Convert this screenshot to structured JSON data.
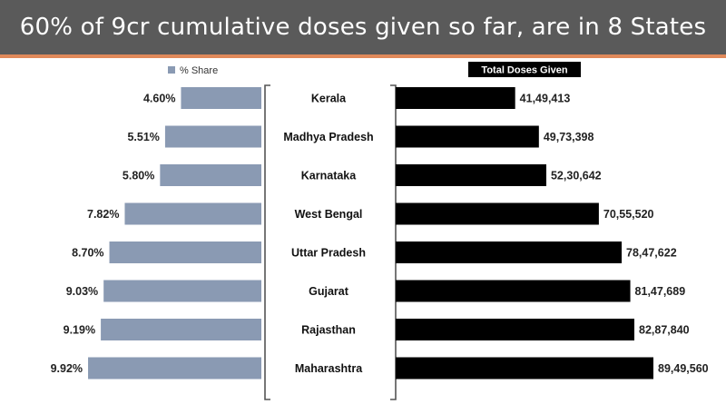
{
  "slide": {
    "title": "60% of 9cr cumulative doses given so far, are in 8 States"
  },
  "colors": {
    "share_bar": "#8a9ab3",
    "doses_bar": "#000000",
    "header_bg": "#5a5a5a",
    "header_accent": "#e0895a"
  },
  "chart_data": [
    {
      "type": "bar",
      "orientation": "horizontal",
      "legend": "% Share",
      "legend_position": "top",
      "categories": [
        "Kerala",
        "Madhya Pradesh",
        "Karnataka",
        "West Bengal",
        "Uttar Pradesh",
        "Gujarat",
        "Rajasthan",
        "Maharashtra"
      ],
      "values": [
        4.6,
        5.51,
        5.8,
        7.82,
        8.7,
        9.03,
        9.19,
        9.92
      ],
      "labels": [
        "4.60%",
        "5.51%",
        "5.80%",
        "7.82%",
        "8.70%",
        "9.03%",
        "9.19%",
        "9.92%"
      ],
      "xlim": [
        0,
        10.5
      ]
    },
    {
      "type": "bar",
      "orientation": "horizontal",
      "legend": "Total Doses Given",
      "legend_position": "top",
      "categories": [
        "Kerala",
        "Madhya Pradesh",
        "Karnataka",
        "West Bengal",
        "Uttar Pradesh",
        "Gujarat",
        "Rajasthan",
        "Maharashtra"
      ],
      "values": [
        4149413,
        4973398,
        5230642,
        7055520,
        7847622,
        8147689,
        8287840,
        8949560
      ],
      "labels": [
        "41,49,413",
        "49,73,398",
        "52,30,642",
        "70,55,520",
        "78,47,622",
        "81,47,689",
        "82,87,840",
        "89,49,560"
      ],
      "xlim": [
        0,
        9700000
      ]
    }
  ]
}
